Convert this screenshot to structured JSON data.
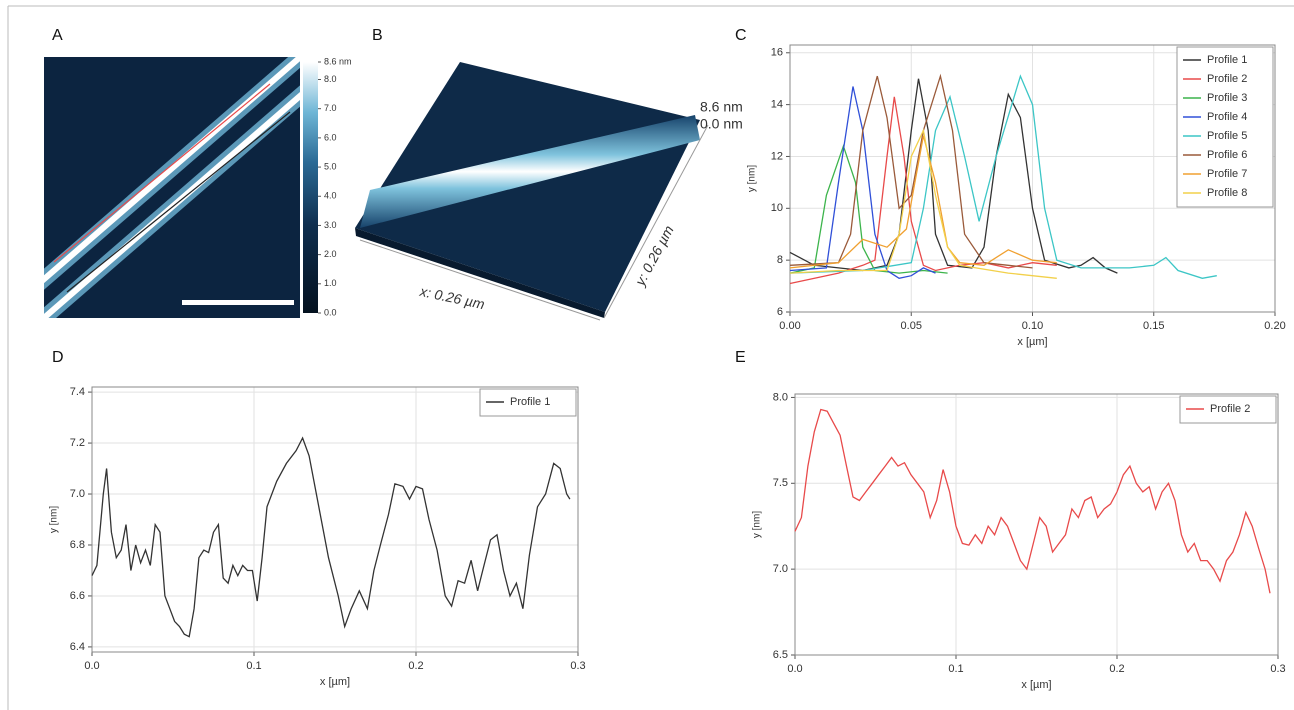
{
  "panel_a": {
    "label": "A",
    "colorbar": {
      "lim": [
        0,
        8.6
      ],
      "ticks": [
        {
          "value": 8.6,
          "label": "8.6 nm"
        },
        {
          "value": 8,
          "label": "8.0"
        },
        {
          "value": 7,
          "label": "7.0"
        },
        {
          "value": 6,
          "label": "6.0"
        },
        {
          "value": 5,
          "label": "5.0"
        },
        {
          "value": 4,
          "label": "4.0"
        },
        {
          "value": 3,
          "label": "3.0"
        },
        {
          "value": 2,
          "label": "2.0"
        },
        {
          "value": 1,
          "label": "1.0"
        },
        {
          "value": 0,
          "label": "0.0"
        }
      ]
    }
  },
  "panel_b": {
    "label": "B",
    "z_max": "8.6 nm",
    "z_min": "0.0 nm",
    "x_size": "x: 0.26 µm",
    "y_size": "y: 0.26 µm"
  },
  "chart_data": [
    {
      "type": "line",
      "label": "C",
      "x_label": "x [µm]",
      "y_label": "y [nm]",
      "grid": true,
      "legend": "top-right",
      "xlim": [
        0,
        0.2
      ],
      "ylim": [
        6,
        16.3
      ],
      "xticks": [
        {
          "value": 0,
          "label": "0.00"
        },
        {
          "value": 0.05,
          "label": "0.05"
        },
        {
          "value": 0.1,
          "label": "0.10"
        },
        {
          "value": 0.15,
          "label": "0.15"
        },
        {
          "value": 0.2,
          "label": "0.20"
        }
      ],
      "yticks": [
        6,
        8,
        10,
        12,
        14,
        16
      ],
      "series": [
        {
          "name": "Profile 1",
          "color": "#333333",
          "x": [
            0,
            0.01,
            0.03,
            0.04,
            0.045,
            0.05,
            0.053,
            0.057,
            0.06,
            0.065,
            0.075,
            0.08,
            0.085,
            0.09,
            0.095,
            0.1,
            0.105,
            0.115,
            0.12,
            0.125,
            0.13,
            0.135
          ],
          "values": [
            8.3,
            7.8,
            7.6,
            7.8,
            9,
            13,
            15,
            13,
            9,
            7.8,
            7.7,
            8.5,
            12,
            14.4,
            13.5,
            10,
            8,
            7.7,
            7.8,
            8.1,
            7.7,
            7.5
          ]
        },
        {
          "name": "Profile 2",
          "color": "#e84a4a",
          "x": [
            0,
            0.02,
            0.03,
            0.035,
            0.04,
            0.043,
            0.047,
            0.05,
            0.055,
            0.06,
            0.07,
            0.08,
            0.09,
            0.1,
            0.11
          ],
          "values": [
            7.1,
            7.5,
            7.8,
            8,
            12,
            14.3,
            12,
            9.5,
            7.8,
            7.6,
            7.8,
            7.9,
            7.7,
            7.9,
            7.8
          ]
        },
        {
          "name": "Profile 3",
          "color": "#3cb44b",
          "x": [
            0,
            0.01,
            0.015,
            0.022,
            0.027,
            0.03,
            0.035,
            0.045,
            0.055,
            0.065
          ],
          "values": [
            7.5,
            7.7,
            10.5,
            12.4,
            11,
            8.5,
            7.6,
            7.5,
            7.6,
            7.5
          ]
        },
        {
          "name": "Profile 4",
          "color": "#3050d8",
          "x": [
            0,
            0.015,
            0.02,
            0.026,
            0.03,
            0.035,
            0.04,
            0.045,
            0.05,
            0.055,
            0.06
          ],
          "values": [
            7.6,
            7.7,
            11,
            14.7,
            13,
            9,
            7.6,
            7.3,
            7.4,
            7.7,
            7.5
          ]
        },
        {
          "name": "Profile 5",
          "color": "#3cc6c6",
          "x": [
            0,
            0.03,
            0.05,
            0.055,
            0.06,
            0.066,
            0.072,
            0.078,
            0.085,
            0.095,
            0.1,
            0.105,
            0.11,
            0.12,
            0.14,
            0.15,
            0.155,
            0.16,
            0.17,
            0.176
          ],
          "values": [
            7.5,
            7.6,
            7.9,
            10,
            13,
            14.3,
            12,
            9.5,
            12,
            15.1,
            14,
            10,
            8,
            7.7,
            7.7,
            7.8,
            8.1,
            7.6,
            7.3,
            7.4
          ]
        },
        {
          "name": "Profile 6",
          "color": "#9a5a3a",
          "x": [
            0,
            0.02,
            0.025,
            0.03,
            0.036,
            0.04,
            0.045,
            0.05,
            0.055,
            0.062,
            0.067,
            0.072,
            0.08,
            0.09,
            0.1
          ],
          "values": [
            7.8,
            7.9,
            9,
            13,
            15.1,
            13.5,
            10,
            10.5,
            13,
            15.1,
            13,
            9,
            7.9,
            7.8,
            7.7
          ]
        },
        {
          "name": "Profile 7",
          "color": "#f0a030",
          "x": [
            0,
            0.02,
            0.03,
            0.04,
            0.048,
            0.055,
            0.06,
            0.065,
            0.07,
            0.08,
            0.09,
            0.1,
            0.11
          ],
          "values": [
            7.7,
            7.9,
            8.8,
            8.5,
            9.2,
            12.8,
            11,
            8.5,
            7.9,
            7.8,
            8.4,
            8,
            7.9
          ]
        },
        {
          "name": "Profile 8",
          "color": "#f2d04a",
          "x": [
            0,
            0.02,
            0.04,
            0.045,
            0.05,
            0.055,
            0.06,
            0.065,
            0.07,
            0.09,
            0.11
          ],
          "values": [
            7.5,
            7.6,
            7.6,
            9,
            12,
            13,
            10.5,
            8.5,
            7.8,
            7.5,
            7.3
          ]
        }
      ]
    },
    {
      "type": "line",
      "label": "D",
      "x_label": "x [µm]",
      "y_label": "y [nm]",
      "grid": true,
      "legend": "top-right",
      "xlim": [
        0,
        0.3
      ],
      "ylim": [
        6.38,
        7.42
      ],
      "xticks": [
        {
          "value": 0,
          "label": "0.0"
        },
        0.1,
        0.2,
        0.3
      ],
      "yticks": [
        6.4,
        6.6,
        6.8,
        {
          "value": 7,
          "label": "7.0"
        },
        7.2,
        7.4
      ],
      "series": [
        {
          "name": "Profile 1",
          "color": "#333333",
          "x": [
            0,
            0.003,
            0.007,
            0.009,
            0.012,
            0.015,
            0.018,
            0.021,
            0.024,
            0.027,
            0.03,
            0.033,
            0.036,
            0.039,
            0.042,
            0.045,
            0.048,
            0.051,
            0.054,
            0.057,
            0.06,
            0.063,
            0.066,
            0.069,
            0.072,
            0.075,
            0.078,
            0.081,
            0.084,
            0.087,
            0.09,
            0.093,
            0.096,
            0.099,
            0.102,
            0.105,
            0.108,
            0.114,
            0.12,
            0.126,
            0.13,
            0.134,
            0.14,
            0.146,
            0.152,
            0.156,
            0.16,
            0.165,
            0.17,
            0.174,
            0.178,
            0.183,
            0.187,
            0.192,
            0.196,
            0.2,
            0.204,
            0.208,
            0.213,
            0.218,
            0.222,
            0.226,
            0.23,
            0.234,
            0.238,
            0.242,
            0.246,
            0.25,
            0.254,
            0.258,
            0.262,
            0.266,
            0.27,
            0.275,
            0.28,
            0.285,
            0.289,
            0.293,
            0.295
          ],
          "values": [
            6.68,
            6.72,
            7.0,
            7.1,
            6.85,
            6.75,
            6.78,
            6.88,
            6.7,
            6.8,
            6.73,
            6.78,
            6.72,
            6.88,
            6.85,
            6.6,
            6.55,
            6.5,
            6.48,
            6.45,
            6.44,
            6.55,
            6.75,
            6.78,
            6.77,
            6.85,
            6.88,
            6.67,
            6.65,
            6.72,
            6.68,
            6.72,
            6.7,
            6.7,
            6.58,
            6.75,
            6.95,
            7.05,
            7.12,
            7.17,
            7.22,
            7.15,
            6.95,
            6.75,
            6.6,
            6.48,
            6.55,
            6.62,
            6.55,
            6.7,
            6.8,
            6.92,
            7.04,
            7.03,
            6.98,
            7.03,
            7.02,
            6.9,
            6.78,
            6.6,
            6.56,
            6.66,
            6.65,
            6.74,
            6.62,
            6.72,
            6.82,
            6.84,
            6.7,
            6.6,
            6.65,
            6.55,
            6.76,
            6.95,
            7.0,
            7.12,
            7.1,
            7.0,
            6.98
          ]
        }
      ]
    },
    {
      "type": "line",
      "label": "E",
      "x_label": "x [µm]",
      "y_label": "y [nm]",
      "grid": true,
      "legend": "top-right",
      "xlim": [
        0,
        0.3
      ],
      "ylim": [
        6.5,
        8.02
      ],
      "xticks": [
        {
          "value": 0,
          "label": "0.0"
        },
        0.1,
        0.2,
        0.3
      ],
      "yticks": [
        6.5,
        {
          "value": 7,
          "label": "7.0"
        },
        7.5,
        {
          "value": 8,
          "label": "8.0"
        }
      ],
      "series": [
        {
          "name": "Profile 2",
          "color": "#e84a4a",
          "x": [
            0,
            0.004,
            0.008,
            0.012,
            0.016,
            0.02,
            0.024,
            0.028,
            0.032,
            0.036,
            0.04,
            0.044,
            0.048,
            0.052,
            0.056,
            0.06,
            0.064,
            0.068,
            0.072,
            0.076,
            0.08,
            0.084,
            0.088,
            0.092,
            0.096,
            0.1,
            0.104,
            0.108,
            0.112,
            0.116,
            0.12,
            0.124,
            0.128,
            0.132,
            0.136,
            0.14,
            0.144,
            0.148,
            0.152,
            0.156,
            0.16,
            0.164,
            0.168,
            0.172,
            0.176,
            0.18,
            0.184,
            0.188,
            0.192,
            0.196,
            0.2,
            0.204,
            0.208,
            0.212,
            0.216,
            0.22,
            0.224,
            0.228,
            0.232,
            0.236,
            0.24,
            0.244,
            0.248,
            0.252,
            0.256,
            0.26,
            0.264,
            0.268,
            0.272,
            0.276,
            0.28,
            0.284,
            0.288,
            0.292,
            0.295
          ],
          "values": [
            7.22,
            7.3,
            7.6,
            7.8,
            7.93,
            7.92,
            7.85,
            7.78,
            7.6,
            7.42,
            7.4,
            7.45,
            7.5,
            7.55,
            7.6,
            7.65,
            7.6,
            7.62,
            7.55,
            7.5,
            7.45,
            7.3,
            7.4,
            7.58,
            7.45,
            7.25,
            7.15,
            7.14,
            7.2,
            7.15,
            7.25,
            7.2,
            7.3,
            7.25,
            7.15,
            7.05,
            7.0,
            7.15,
            7.3,
            7.25,
            7.1,
            7.15,
            7.2,
            7.35,
            7.3,
            7.4,
            7.42,
            7.3,
            7.35,
            7.38,
            7.45,
            7.55,
            7.6,
            7.5,
            7.45,
            7.48,
            7.35,
            7.45,
            7.5,
            7.4,
            7.2,
            7.1,
            7.15,
            7.05,
            7.05,
            7.0,
            6.93,
            7.05,
            7.1,
            7.2,
            7.33,
            7.25,
            7.12,
            7.0,
            6.86
          ]
        }
      ]
    }
  ]
}
